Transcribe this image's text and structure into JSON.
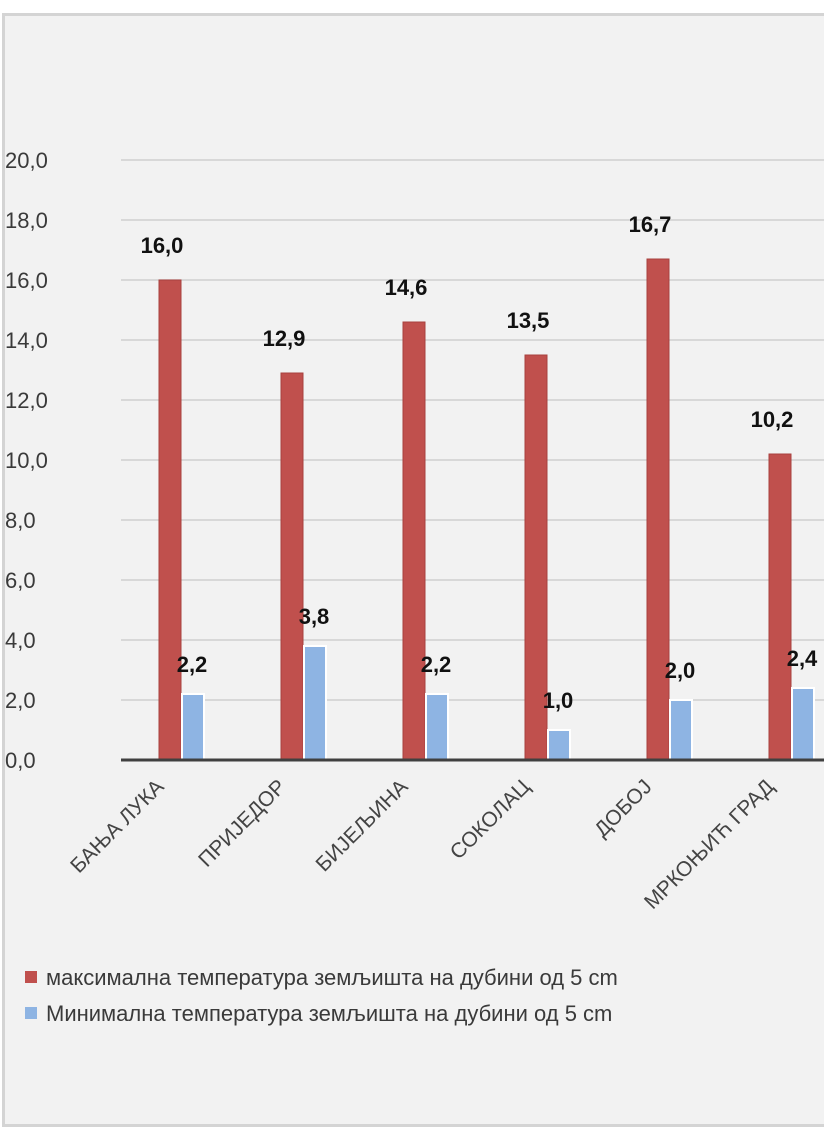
{
  "chart_data": {
    "type": "bar",
    "categories": [
      "БАЊА ЛУКА",
      "ПРИЈЕДОР",
      "БИЈЕЉИНА",
      "СОКОЛАЦ",
      "ДОБОЈ",
      "МРКОЊИЋ ГРАД"
    ],
    "series": [
      {
        "name": "максимална температура земљишта на дубини од 5 cm",
        "values": [
          16.0,
          12.9,
          14.6,
          13.5,
          16.7,
          10.2
        ],
        "labels": [
          "16,0",
          "12,9",
          "14,6",
          "13,5",
          "16,7",
          "10,2"
        ],
        "color": "#c0504d"
      },
      {
        "name": "Минимална температура земљишта на дубини од 5 cm",
        "values": [
          2.2,
          3.8,
          2.2,
          1.0,
          2.0,
          2.4
        ],
        "labels": [
          "2,2",
          "3,8",
          "2,2",
          "1,0",
          "2,0",
          "2,4"
        ],
        "color": "#8eb4e3"
      }
    ],
    "y_ticks": [
      "0,0",
      "2,0",
      "4,0",
      "6,0",
      "8,0",
      "10,0",
      "12,0",
      "14,0",
      "16,0",
      "18,0",
      "20,0"
    ],
    "ylim": [
      0,
      20
    ],
    "grid": true,
    "legend_position": "bottom"
  },
  "legend": {
    "items": [
      {
        "label": "максимална температура земљишта на дубини од 5 cm"
      },
      {
        "label": "Минимална температура земљишта на дубини од 5 cm"
      }
    ]
  }
}
